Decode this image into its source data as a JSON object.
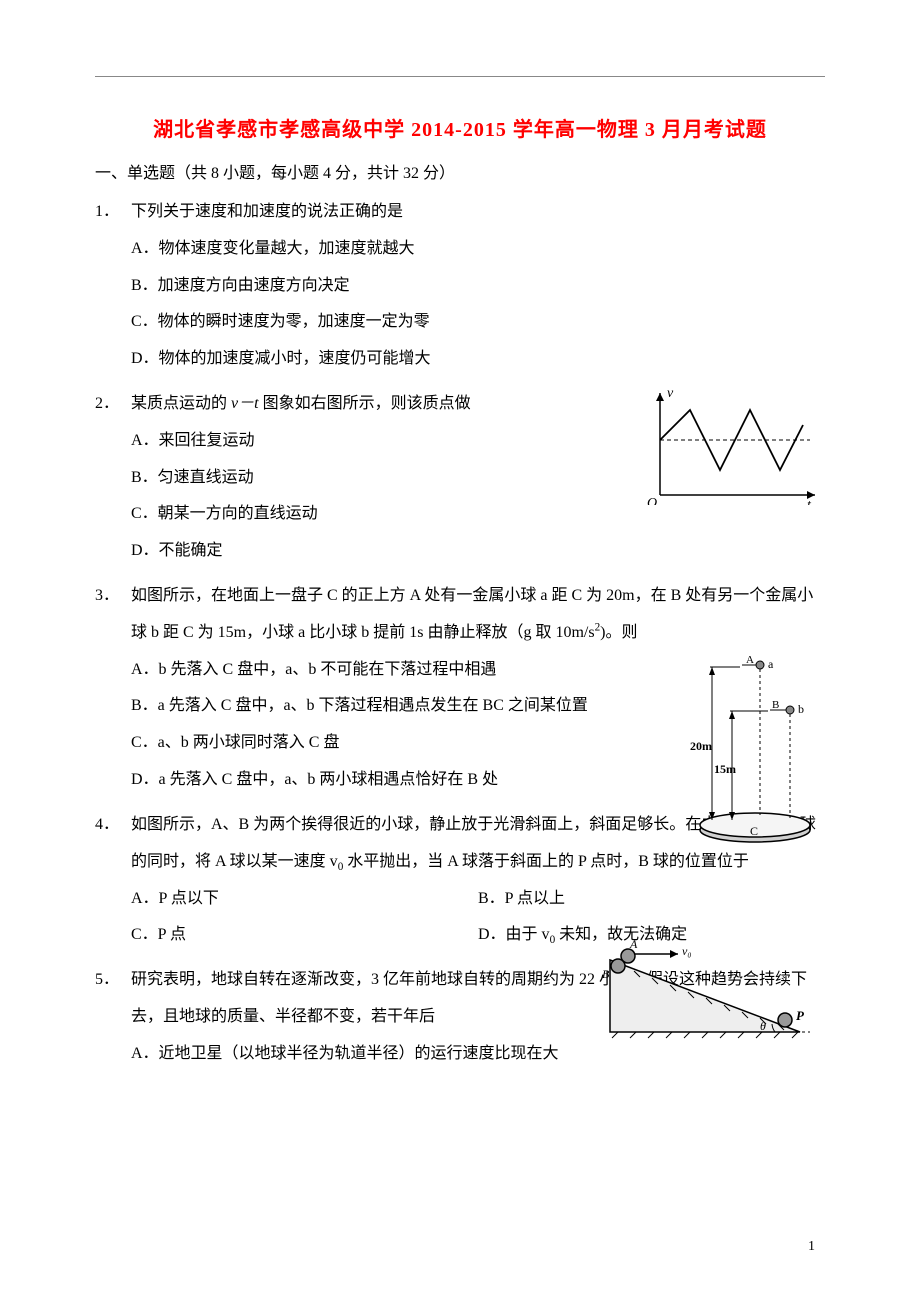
{
  "title": "湖北省孝感市孝感高级中学 2014-2015 学年高一物理 3 月月考试题",
  "section_header": "一、单选题（共 8 小题，每小题 4 分，共计 32 分）",
  "questions": [
    {
      "num": "1．",
      "text": "下列关于速度和加速度的说法正确的是",
      "options": [
        "A．物体速度变化量越大，加速度就越大",
        "B．加速度方向由速度方向决定",
        "C．物体的瞬时速度为零，加速度一定为零",
        "D．物体的加速度减小时，速度仍可能增大"
      ]
    },
    {
      "num": "2．",
      "text_html": "某质点运动的 <span class='italic'>v－t</span> 图象如右图所示，则该质点做",
      "options": [
        "A．来回往复运动",
        "B．匀速直线运动",
        "C．朝某一方向的直线运动",
        "D．不能确定"
      ]
    },
    {
      "num": "3．",
      "text_html": "如图所示，在地面上一盘子 C 的正上方 A 处有一金属小球 a 距 C 为 20m，在 B 处有另一个金属小球 b 距 C 为 15m，小球 a 比小球 b 提前 1s 由静止释放（g 取 10m/s<sup>2</sup>)。则",
      "options": [
        "A．b 先落入 C 盘中，a、b 不可能在下落过程中相遇",
        "B．a 先落入 C 盘中，a、b 下落过程相遇点发生在 BC 之间某位置",
        "C．a、b 两小球同时落入 C 盘",
        "D．a 先落入 C 盘中，a、b 两小球相遇点恰好在 B 处"
      ]
    },
    {
      "num": "4．",
      "text_html": "如图所示，A、B 为两个挨得很近的小球，静止放于光滑斜面上，斜面足够长。在由静止释放 B 球的同时，将 A 球以某一速度 v<sub>0</sub> 水平抛出，当 A 球落于斜面上的 P 点时，B 球的位置位于",
      "options_layout": "inline",
      "options": [
        {
          "label": "A．P 点以下",
          "cls": "opt-half"
        },
        {
          "label": "B．P 点以上",
          "cls": "opt-half"
        },
        {
          "label": "C．P 点",
          "cls": "opt-half"
        },
        {
          "label_html": "D．由于 v<sub>0</sub> 未知，故无法确定",
          "cls": "opt-half"
        }
      ]
    },
    {
      "num": "5．",
      "text": "研究表明，地球自转在逐渐改变，3 亿年前地球自转的周期约为 22 小时。假设这种趋势会持续下去，且地球的质量、半径都不变，若干年后",
      "options": [
        "A．近地卫星（以地球半径为轨道半径）的运行速度比现在大"
      ]
    }
  ],
  "page_number": "1",
  "vt_graph": {
    "axis_label_y": "v",
    "axis_label_x": "t",
    "origin_label": "O",
    "stroke": "#000000"
  },
  "fall_diagram": {
    "label_a": "a",
    "label_b": "b",
    "label_A": "A",
    "label_B": "B",
    "label_C": "C",
    "height_20": "20m",
    "height_15": "15m"
  },
  "incline_diagram": {
    "label_A": "A",
    "label_B": "B",
    "label_v0": "v₀",
    "label_P": "P",
    "label_theta": "θ"
  }
}
